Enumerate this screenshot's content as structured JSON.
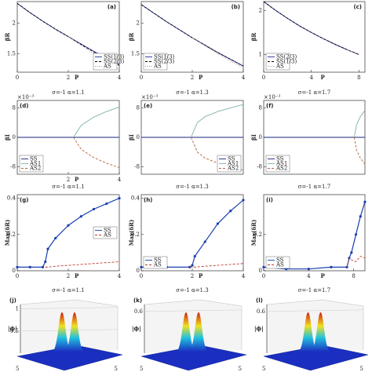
{
  "chart_data": [
    {
      "type": "line",
      "label": "(a)",
      "ylabel": "βR",
      "xlabel": "P",
      "xlim": [
        0,
        4
      ],
      "ylim": [
        1.2,
        2.35
      ],
      "xticks": [
        0,
        2,
        4
      ],
      "yticks": [
        1.5,
        2
      ],
      "legend": "lower right",
      "x": [
        0,
        0.5,
        1,
        1.5,
        2,
        2.5,
        3,
        3.5,
        4
      ],
      "series": [
        {
          "name": "SS(1/3)",
          "color": "#1f2fa0",
          "style": "solid",
          "values": [
            2.32,
            2.17,
            2.03,
            1.9,
            1.78,
            1.66,
            1.54,
            1.43,
            1.33
          ]
        },
        {
          "name": "SS(2/3)",
          "color": "#000000",
          "style": "dashed",
          "values": [
            2.32,
            2.17,
            2.03,
            1.9,
            1.78,
            1.65,
            1.53,
            1.42,
            1.31
          ]
        },
        {
          "name": "AS",
          "color": "#c08080",
          "style": "dotted",
          "values": [
            null,
            null,
            null,
            null,
            1.78,
            1.64,
            1.5,
            1.37,
            1.24
          ]
        }
      ]
    },
    {
      "type": "line",
      "label": "(b)",
      "ylabel": "βR",
      "xlabel": "P",
      "xlim": [
        0,
        4
      ],
      "ylim": [
        1.2,
        2.35
      ],
      "xticks": [
        0,
        2,
        4
      ],
      "yticks": [
        1.5,
        2
      ],
      "legend": "lower left",
      "x": [
        0,
        0.5,
        1,
        1.5,
        2,
        2.5,
        3,
        3.5,
        4
      ],
      "series": [
        {
          "name": "SS(1/3)",
          "color": "#1f2fa0",
          "style": "solid",
          "values": [
            2.3,
            2.16,
            2.02,
            1.89,
            1.76,
            1.64,
            1.52,
            1.41,
            1.3
          ]
        },
        {
          "name": "SS(2/3)",
          "color": "#000000",
          "style": "dashed",
          "values": [
            2.3,
            2.16,
            2.02,
            1.89,
            1.76,
            1.64,
            1.52,
            1.41,
            1.3
          ]
        },
        {
          "name": "AS",
          "color": "#c08080",
          "style": "dotted",
          "values": [
            null,
            null,
            null,
            null,
            1.76,
            1.63,
            1.5,
            1.38,
            1.27
          ]
        }
      ]
    },
    {
      "type": "line",
      "label": "(c)",
      "ylabel": "βR",
      "xlabel": "P",
      "xlim": [
        0,
        8.5
      ],
      "ylim": [
        0.6,
        2.2
      ],
      "xticks": [
        0,
        4,
        8
      ],
      "yticks": [
        1,
        2
      ],
      "legend": "lower left",
      "x": [
        0,
        1,
        2,
        3,
        4,
        5,
        6,
        7,
        8
      ],
      "series": [
        {
          "name": "SS(2/3)",
          "color": "#1f2fa0",
          "style": "solid",
          "values": [
            2.2,
            2.0,
            1.82,
            1.65,
            1.5,
            1.36,
            1.23,
            1.11,
            1.0
          ]
        },
        {
          "name": "SS(1/3)",
          "color": "#000000",
          "style": "dashed",
          "values": [
            2.2,
            2.0,
            1.82,
            1.65,
            1.5,
            1.36,
            1.23,
            1.11,
            1.0
          ]
        },
        {
          "name": "AS",
          "color": "#c08080",
          "style": "dotted",
          "values": [
            null,
            null,
            null,
            null,
            null,
            null,
            null,
            1.11,
            0.99
          ]
        }
      ]
    },
    {
      "type": "line",
      "label": "(d)",
      "title": "σ=-1 α=1.1",
      "ylabel": "βI",
      "y_multiplier": "×10⁻³",
      "xlabel": "P",
      "xlim": [
        0,
        4
      ],
      "ylim": [
        -10,
        10
      ],
      "xticks": [
        2,
        4
      ],
      "yticks": [
        -8,
        0,
        8
      ],
      "legend": "lower left",
      "x": [
        0,
        1,
        2,
        2.2,
        2.5,
        3,
        3.5,
        4
      ],
      "series": [
        {
          "name": "SS",
          "color": "#1a237e",
          "style": "solid",
          "values": [
            0,
            0,
            0,
            0,
            0,
            0,
            0,
            0
          ]
        },
        {
          "name": "AS1",
          "color": "#7fb0b0",
          "style": "solid",
          "values": [
            null,
            null,
            null,
            0,
            3.2,
            5.5,
            7,
            8.2
          ]
        },
        {
          "name": "AS2",
          "color": "#b0643c",
          "style": "dashed",
          "values": [
            null,
            null,
            null,
            0,
            -3.2,
            -5.5,
            -7,
            -8.2
          ]
        }
      ]
    },
    {
      "type": "line",
      "label": "(e)",
      "title": "σ=-1 α=1.3",
      "ylabel": "βI",
      "y_multiplier": "×10⁻³",
      "xlim": [
        0,
        4
      ],
      "ylim": [
        -10,
        10
      ],
      "yticks": [
        -8,
        0,
        8
      ],
      "legend": "lower right",
      "x": [
        0,
        1,
        1.95,
        2.2,
        2.5,
        3,
        3.5,
        4
      ],
      "series": [
        {
          "name": "SS",
          "color": "#1a237e",
          "style": "solid",
          "values": [
            0,
            0,
            0,
            0,
            0,
            0,
            0,
            0
          ]
        },
        {
          "name": "AS1",
          "color": "#7fb0b0",
          "style": "solid",
          "values": [
            null,
            null,
            0,
            4,
            5.6,
            7,
            8,
            8.9
          ]
        },
        {
          "name": "AS2",
          "color": "#b0643c",
          "style": "dashed",
          "values": [
            null,
            null,
            0,
            -4,
            -5.6,
            -7,
            -8,
            -8.9
          ]
        }
      ]
    },
    {
      "type": "line",
      "label": "(f)",
      "title": "σ=-1 α=1.7",
      "ylabel": "βI",
      "y_multiplier": "×10⁻³",
      "xlim": [
        0,
        8.5
      ],
      "ylim": [
        -10,
        10
      ],
      "yticks": [
        -8,
        0,
        8
      ],
      "legend": "lower left",
      "x": [
        0,
        2,
        4,
        6,
        7.6,
        7.8,
        8.1,
        8.5
      ],
      "series": [
        {
          "name": "SS",
          "color": "#1a237e",
          "style": "solid",
          "values": [
            0,
            0,
            0,
            0,
            0,
            0,
            0,
            0
          ]
        },
        {
          "name": "AS1",
          "color": "#7fb0b0",
          "style": "solid",
          "values": [
            null,
            null,
            null,
            null,
            0,
            3.5,
            5.5,
            7.3
          ]
        },
        {
          "name": "AS2",
          "color": "#b0643c",
          "style": "dashed",
          "values": [
            null,
            null,
            null,
            null,
            0,
            -3.5,
            -5.5,
            -7.3
          ]
        }
      ]
    },
    {
      "type": "line",
      "label": "(g)",
      "title": "σ=-1 α=1.1",
      "ylabel": "Max(δR)",
      "xlabel": "P",
      "xlim": [
        0,
        4
      ],
      "ylim": [
        0,
        0.42
      ],
      "xticks": [
        0,
        2,
        4
      ],
      "yticks": [
        0,
        0.2,
        0.4
      ],
      "legend": "center right",
      "x": [
        0,
        0.5,
        1,
        1.1,
        1.2,
        1.5,
        2,
        2.5,
        3,
        3.5,
        4
      ],
      "series": [
        {
          "name": "SS",
          "color": "#1a3fb0",
          "style": "solid",
          "marker": true,
          "values": [
            0.02,
            0.02,
            0.02,
            0.05,
            0.12,
            0.18,
            0.25,
            0.3,
            0.34,
            0.37,
            0.4
          ]
        },
        {
          "name": "AS",
          "color": "#c0392b",
          "style": "dashed",
          "values": [
            null,
            null,
            null,
            0.02,
            0.02,
            0.025,
            0.03,
            0.035,
            0.04,
            0.045,
            0.05
          ]
        }
      ]
    },
    {
      "type": "line",
      "label": "(h)",
      "title": "σ=-1 α=1.3",
      "ylabel": "Max(δR)",
      "xlabel": "P",
      "xlim": [
        0,
        4
      ],
      "ylim": [
        0,
        0.42
      ],
      "xticks": [
        0,
        2,
        4
      ],
      "yticks": [
        0,
        0.2,
        0.4
      ],
      "legend": "lower left",
      "x": [
        0,
        1,
        1.9,
        2,
        2.1,
        2.5,
        3,
        3.5,
        4
      ],
      "series": [
        {
          "name": "SS",
          "color": "#1a3fb0",
          "style": "solid",
          "marker": true,
          "values": [
            0.02,
            0.02,
            0.02,
            0.03,
            0.08,
            0.16,
            0.26,
            0.33,
            0.39
          ]
        },
        {
          "name": "AS",
          "color": "#c0392b",
          "style": "dashed",
          "values": [
            null,
            null,
            0.02,
            0.02,
            0.02,
            0.025,
            0.03,
            0.035,
            0.04
          ]
        }
      ]
    },
    {
      "type": "line",
      "label": "(i)",
      "title": "σ=-1 α=1.7",
      "ylabel": "Max(δR)",
      "xlabel": "P",
      "xlim": [
        0,
        9
      ],
      "ylim": [
        0,
        0.42
      ],
      "xticks": [
        0,
        4,
        8
      ],
      "yticks": [
        0,
        0.2
      ],
      "legend": "lower left",
      "x": [
        0,
        2,
        4,
        6,
        7.4,
        7.6,
        7.8,
        8.2,
        8.6,
        9
      ],
      "series": [
        {
          "name": "SS",
          "color": "#1a3fb0",
          "style": "solid",
          "marker": true,
          "values": [
            0.02,
            0.01,
            0.01,
            0.02,
            0.02,
            0.07,
            0.1,
            0.2,
            0.3,
            0.38
          ]
        },
        {
          "name": "AS",
          "color": "#c0392b",
          "style": "dashed",
          "values": [
            null,
            null,
            null,
            null,
            0.02,
            0.07,
            0.06,
            0.05,
            0.08,
            0.07
          ]
        }
      ]
    },
    {
      "type": "surface",
      "label": "(j)",
      "title": "σ=-1 α=1.1",
      "ylabel": "|ϕ|",
      "zlim": [
        0,
        1.1
      ],
      "zticks": [
        0.5,
        1
      ],
      "xticks": [
        5
      ],
      "yticks": [
        5
      ]
    },
    {
      "type": "surface",
      "label": "(k)",
      "title": "σ=-1 α=1.3",
      "ylabel": "|ϕ|",
      "zlim": [
        0,
        0.7
      ],
      "zticks": [
        0.6
      ],
      "xticks": [
        5
      ],
      "yticks": [
        5
      ]
    },
    {
      "type": "surface",
      "label": "(l)",
      "title": "σ=-1 α=1.7",
      "ylabel": "|ϕ|",
      "zlim": [
        0,
        0.7
      ],
      "zticks": [
        0.6
      ],
      "xticks": [
        5
      ],
      "yticks": [
        5
      ]
    }
  ]
}
